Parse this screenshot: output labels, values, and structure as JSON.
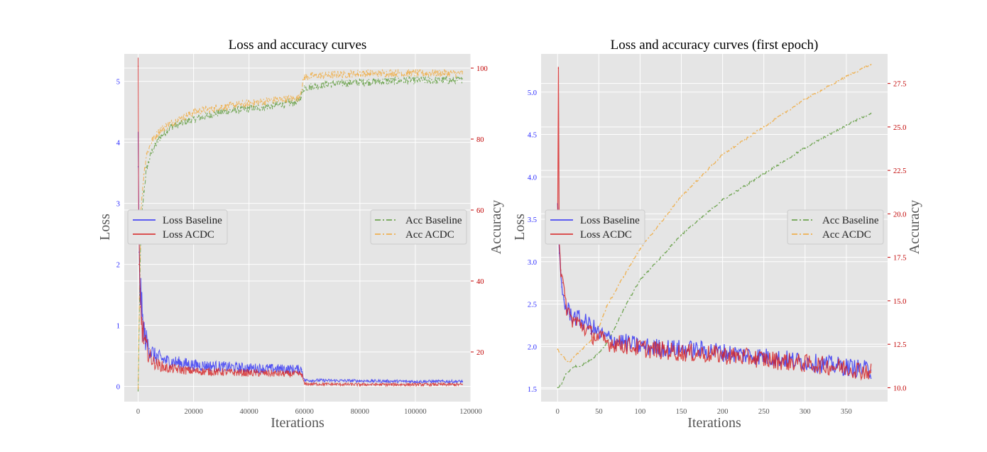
{
  "colors": {
    "loss_baseline": "#2f2ff5",
    "loss_acdc": "#d62020",
    "acc_baseline": "#5c9a3a",
    "acc_acdc": "#f0a838",
    "plot_bg": "#e5e5e5",
    "left_tick": "#2a2aff",
    "right_tick": "#c00000"
  },
  "chart_data": [
    {
      "type": "line",
      "title": "Loss and accuracy curves",
      "xlabel": "Iterations",
      "ylabel": "Loss",
      "ylabel_right": "Accuracy",
      "xlim": [
        -5000,
        120000
      ],
      "ylim": [
        -0.25,
        5.45
      ],
      "ylim_right": [
        6,
        104
      ],
      "x_ticks": [
        0,
        20000,
        40000,
        60000,
        80000,
        100000,
        120000
      ],
      "x_tick_labels": [
        "0",
        "20000",
        "40000",
        "60000",
        "80000",
        "100000",
        "120000"
      ],
      "y_ticks": [
        0,
        1,
        2,
        3,
        4,
        5
      ],
      "y_tick_labels": [
        "0",
        "1",
        "2",
        "3",
        "4",
        "5"
      ],
      "y_right_ticks": [
        20,
        40,
        60,
        80,
        100
      ],
      "y_right_tick_labels": [
        "20",
        "40",
        "60",
        "80",
        "100"
      ],
      "grid": true,
      "legend_left": {
        "placement": "center-left",
        "entries": [
          "Loss Baseline",
          "Loss ACDC"
        ]
      },
      "legend_right": {
        "placement": "center-right",
        "entries": [
          "Acc Baseline",
          "Acc ACDC"
        ]
      },
      "series": [
        {
          "name": "Loss Baseline",
          "axis": "left",
          "style": "solid",
          "x": [
            0,
            300,
            800,
            1500,
            2500,
            4000,
            6000,
            10000,
            20000,
            40000,
            58000,
            59000,
            60000,
            80000,
            100000,
            117000
          ],
          "y": [
            3.6,
            2.2,
            1.6,
            1.1,
            0.8,
            0.62,
            0.5,
            0.42,
            0.35,
            0.3,
            0.28,
            0.28,
            0.1,
            0.09,
            0.08,
            0.08
          ]
        },
        {
          "name": "Loss ACDC",
          "axis": "left",
          "style": "solid",
          "x": [
            0,
            100,
            300,
            800,
            1500,
            2500,
            4000,
            6000,
            10000,
            20000,
            40000,
            58000,
            59000,
            60000,
            80000,
            100000,
            117000
          ],
          "y": [
            5.25,
            2.8,
            2.0,
            1.3,
            0.95,
            0.7,
            0.5,
            0.38,
            0.3,
            0.25,
            0.22,
            0.2,
            0.2,
            0.04,
            0.03,
            0.03,
            0.03
          ]
        },
        {
          "name": "Acc Baseline",
          "axis": "right",
          "style": "dashdot",
          "x": [
            0,
            500,
            1000,
            2000,
            3000,
            5000,
            8000,
            12000,
            20000,
            30000,
            40000,
            50000,
            58000,
            60000,
            70000,
            80000,
            100000,
            117000
          ],
          "y": [
            9,
            35,
            55,
            65,
            72,
            77,
            81,
            84,
            86,
            88,
            89,
            90,
            91,
            95,
            96,
            96.5,
            97,
            97
          ]
        },
        {
          "name": "Acc ACDC",
          "axis": "right",
          "style": "dashdot",
          "x": [
            0,
            500,
            1000,
            2000,
            3000,
            5000,
            8000,
            12000,
            20000,
            30000,
            40000,
            50000,
            58000,
            60000,
            70000,
            80000,
            100000,
            117000
          ],
          "y": [
            10,
            40,
            60,
            70,
            76,
            80,
            83,
            85,
            88,
            89.5,
            90.5,
            91.5,
            92,
            98,
            98.5,
            99,
            99,
            99
          ]
        }
      ]
    },
    {
      "type": "line",
      "title": "Loss and accuracy curves (first epoch)",
      "xlabel": "Iterations",
      "ylabel": "Loss",
      "ylabel_right": "Accuracy",
      "xlim": [
        -20,
        400
      ],
      "ylim": [
        1.35,
        5.45
      ],
      "ylim_right": [
        9.2,
        29.2
      ],
      "x_ticks": [
        0,
        50,
        100,
        150,
        200,
        250,
        300,
        350
      ],
      "x_tick_labels": [
        "0",
        "50",
        "100",
        "150",
        "200",
        "250",
        "300",
        "350"
      ],
      "y_ticks": [
        1.5,
        2.0,
        2.5,
        3.0,
        3.5,
        4.0,
        4.5,
        5.0
      ],
      "y_tick_labels": [
        "1.5",
        "2.0",
        "2.5",
        "3.0",
        "3.5",
        "4.0",
        "4.5",
        "5.0"
      ],
      "y_right_ticks": [
        10.0,
        12.5,
        15.0,
        17.5,
        20.0,
        22.5,
        25.0,
        27.5
      ],
      "y_right_tick_labels": [
        "10.0",
        "12.5",
        "15.0",
        "17.5",
        "20.0",
        "22.5",
        "25.0",
        "27.5"
      ],
      "grid": true,
      "legend_left": {
        "placement": "center-left",
        "entries": [
          "Loss Baseline",
          "Loss ACDC"
        ]
      },
      "legend_right": {
        "placement": "center-right",
        "entries": [
          "Acc Baseline",
          "Acc ACDC"
        ]
      },
      "series": [
        {
          "name": "Loss Baseline",
          "axis": "left",
          "style": "solid",
          "x": [
            0,
            2,
            5,
            8,
            10,
            15,
            20,
            30,
            40,
            50,
            60,
            80,
            100,
            150,
            190,
            200,
            250,
            300,
            350,
            380
          ],
          "y": [
            3.6,
            3.1,
            2.7,
            2.55,
            2.45,
            2.4,
            2.35,
            2.3,
            2.25,
            2.15,
            2.1,
            2.05,
            2.0,
            1.97,
            1.95,
            1.93,
            1.88,
            1.82,
            1.76,
            1.72
          ]
        },
        {
          "name": "Loss ACDC",
          "axis": "left",
          "style": "solid",
          "x": [
            0,
            1,
            2,
            4,
            6,
            8,
            10,
            15,
            20,
            30,
            40,
            50,
            60,
            80,
            100,
            150,
            200,
            250,
            300,
            350,
            380
          ],
          "y": [
            3.3,
            5.28,
            3.3,
            2.9,
            2.75,
            2.6,
            2.5,
            2.35,
            2.3,
            2.25,
            2.15,
            2.1,
            2.05,
            2.02,
            1.98,
            1.93,
            1.9,
            1.85,
            1.8,
            1.75,
            1.7
          ]
        },
        {
          "name": "Acc Baseline",
          "axis": "right",
          "style": "dashdot",
          "x": [
            0,
            5,
            10,
            20,
            30,
            40,
            50,
            60,
            70,
            80,
            100,
            150,
            200,
            250,
            300,
            350,
            380
          ],
          "y": [
            10.0,
            10.2,
            10.8,
            11.2,
            11.3,
            11.6,
            12.0,
            12.6,
            13.5,
            14.5,
            16.2,
            18.8,
            20.8,
            22.3,
            23.8,
            25.1,
            25.8
          ]
        },
        {
          "name": "Acc ACDC",
          "axis": "right",
          "style": "dashdot",
          "x": [
            0,
            5,
            10,
            15,
            20,
            30,
            40,
            50,
            60,
            80,
            100,
            150,
            200,
            250,
            300,
            350,
            380
          ],
          "y": [
            12.2,
            11.9,
            11.6,
            11.5,
            11.8,
            12.2,
            12.7,
            13.5,
            14.7,
            16.4,
            18.0,
            21.0,
            23.4,
            25.0,
            26.6,
            27.9,
            28.6
          ]
        }
      ]
    }
  ]
}
